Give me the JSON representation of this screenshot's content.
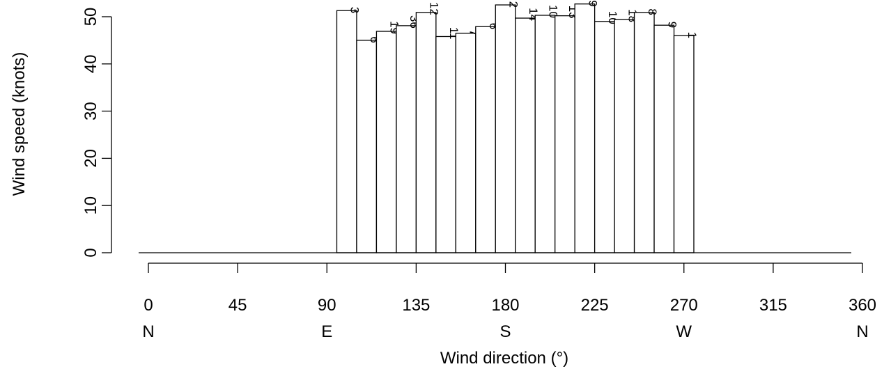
{
  "chart_data": {
    "type": "bar",
    "xlabel": "Wind direction (°)",
    "ylabel": "Wind speed (knots)",
    "xlim": [
      0,
      360
    ],
    "ylim": [
      0,
      50
    ],
    "x_ticks": [
      0,
      45,
      90,
      135,
      180,
      225,
      270,
      315,
      360
    ],
    "x_ticks_secondary": [
      {
        "value": 0,
        "label": "N"
      },
      {
        "value": 90,
        "label": "E"
      },
      {
        "value": 180,
        "label": "S"
      },
      {
        "value": 270,
        "label": "W"
      },
      {
        "value": 360,
        "label": "N"
      }
    ],
    "y_ticks": [
      0,
      10,
      20,
      30,
      40,
      50
    ],
    "bin_width": 10,
    "bars": [
      {
        "center": 100,
        "value": 51.3,
        "label": "3"
      },
      {
        "center": 110,
        "value": 45.0,
        "label": "6"
      },
      {
        "center": 120,
        "value": 46.9,
        "label": "19"
      },
      {
        "center": 130,
        "value": 48.1,
        "label": "36"
      },
      {
        "center": 140,
        "value": 50.9,
        "label": "12"
      },
      {
        "center": 150,
        "value": 45.8,
        "label": "11"
      },
      {
        "center": 160,
        "value": 46.5,
        "label": "7"
      },
      {
        "center": 170,
        "value": 47.9,
        "label": "6"
      },
      {
        "center": 180,
        "value": 52.5,
        "label": "2"
      },
      {
        "center": 190,
        "value": 49.7,
        "label": "14"
      },
      {
        "center": 200,
        "value": 50.3,
        "label": "10"
      },
      {
        "center": 210,
        "value": 50.2,
        "label": "13"
      },
      {
        "center": 220,
        "value": 52.7,
        "label": "19"
      },
      {
        "center": 230,
        "value": 49.0,
        "label": "10"
      },
      {
        "center": 240,
        "value": 49.4,
        "label": "18"
      },
      {
        "center": 250,
        "value": 50.9,
        "label": "8"
      },
      {
        "center": 260,
        "value": 48.2,
        "label": "9"
      },
      {
        "center": 270,
        "value": 46.0,
        "label": "1"
      }
    ],
    "grid": false,
    "legend": "none"
  }
}
